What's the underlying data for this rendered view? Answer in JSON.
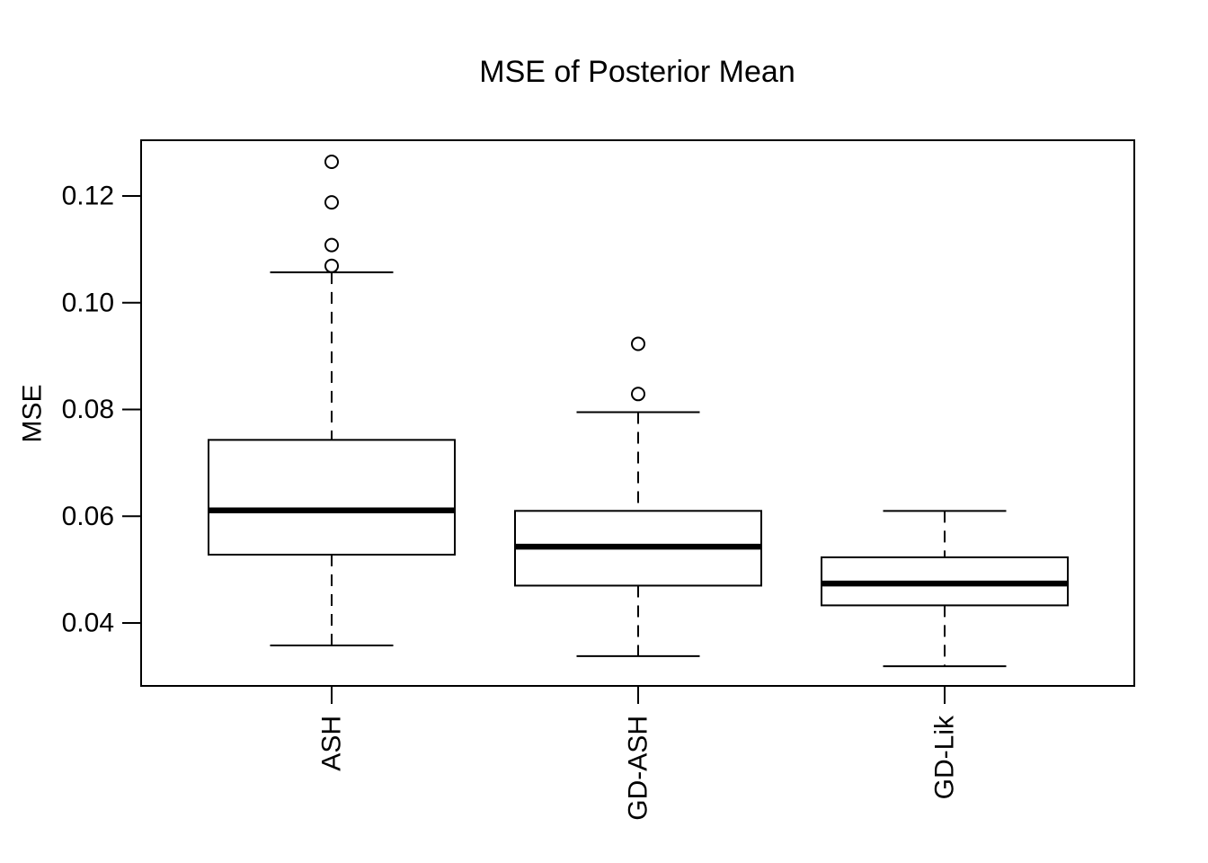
{
  "figure": {
    "background_color": "#FFFFFF",
    "foreground_color": "#000000"
  },
  "chart_data": {
    "type": "boxplot",
    "title": "MSE of Posterior Mean",
    "ylabel": "MSE",
    "xlabel": "",
    "categories": [
      "ASH",
      "GD-ASH",
      "GD-Lik"
    ],
    "y_ticks": [
      0.04,
      0.06,
      0.08,
      0.1,
      0.12
    ],
    "y_tick_labels": [
      "0.04",
      "0.06",
      "0.08",
      "0.10",
      "0.12"
    ],
    "ylim": [
      0.0284,
      0.1304
    ],
    "grid": "off",
    "legend": "none",
    "orientation": "vertical",
    "series": [
      {
        "name": "ASH",
        "lower_whisker": 0.0358,
        "q1": 0.0528,
        "median": 0.0611,
        "q3": 0.0743,
        "upper_whisker": 0.1057,
        "outliers": [
          0.1069,
          0.1108,
          0.1188,
          0.1264
        ]
      },
      {
        "name": "GD-ASH",
        "lower_whisker": 0.0338,
        "q1": 0.047,
        "median": 0.0543,
        "q3": 0.061,
        "upper_whisker": 0.0795,
        "outliers": [
          0.0829,
          0.0923
        ]
      },
      {
        "name": "GD-Lik",
        "lower_whisker": 0.0319,
        "q1": 0.0433,
        "median": 0.0474,
        "q3": 0.0523,
        "upper_whisker": 0.061,
        "outliers": []
      }
    ]
  }
}
